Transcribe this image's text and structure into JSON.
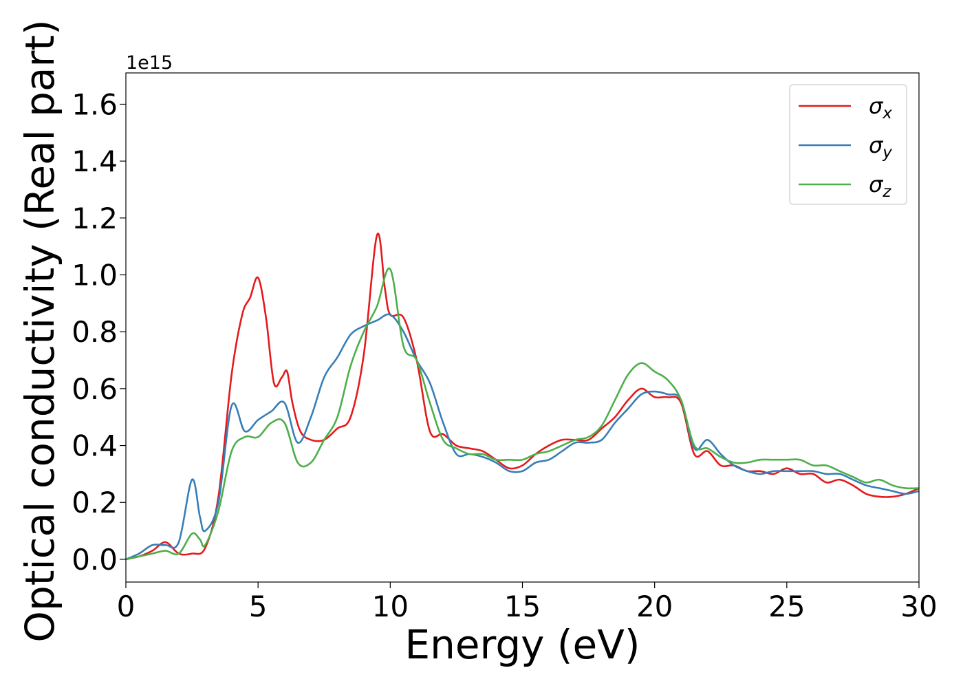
{
  "chart_data": {
    "type": "line",
    "title": "",
    "xlabel": "Energy (eV)",
    "ylabel": "Optical conductivity (Real part)",
    "y_offset_label": "1e15",
    "xlim": [
      0,
      30
    ],
    "ylim": [
      -0.08,
      1.71
    ],
    "x_ticks": [
      0,
      5,
      10,
      15,
      20,
      25,
      30
    ],
    "x_tick_labels": [
      "0",
      "5",
      "10",
      "15",
      "20",
      "25",
      "30"
    ],
    "y_ticks": [
      0.0,
      0.2,
      0.4,
      0.6,
      0.8,
      1.0,
      1.2,
      1.4,
      1.6
    ],
    "y_tick_labels": [
      "0.0",
      "0.2",
      "0.4",
      "0.6",
      "0.8",
      "1.0",
      "1.2",
      "1.4",
      "1.6"
    ],
    "grid": false,
    "legend_position": "top-right",
    "series": [
      {
        "name": "σx",
        "name_base": "σ",
        "name_sub": "x",
        "color": "#e41a1c",
        "x": [
          0,
          0.5,
          1,
          1.5,
          2,
          2.5,
          3,
          3.5,
          4,
          4.4,
          4.7,
          5,
          5.3,
          5.6,
          5.9,
          6.1,
          6.3,
          6.6,
          7,
          7.5,
          8,
          8.5,
          9,
          9.5,
          9.8,
          10,
          10.5,
          11,
          11.5,
          12,
          12.5,
          13,
          13.5,
          14,
          14.5,
          15,
          15.5,
          16,
          16.5,
          17,
          17.5,
          18,
          18.5,
          19,
          19.5,
          20,
          20.5,
          21,
          21.5,
          22,
          22.5,
          23,
          23.5,
          24,
          24.5,
          25,
          25.5,
          26,
          26.5,
          27,
          27.5,
          28,
          28.5,
          29,
          29.5,
          30
        ],
        "y": [
          0,
          0.01,
          0.03,
          0.06,
          0.02,
          0.02,
          0.04,
          0.22,
          0.65,
          0.86,
          0.92,
          0.99,
          0.85,
          0.62,
          0.64,
          0.66,
          0.55,
          0.45,
          0.42,
          0.42,
          0.46,
          0.5,
          0.72,
          1.14,
          0.95,
          0.86,
          0.85,
          0.7,
          0.45,
          0.44,
          0.4,
          0.39,
          0.38,
          0.35,
          0.32,
          0.33,
          0.37,
          0.4,
          0.42,
          0.42,
          0.42,
          0.46,
          0.5,
          0.56,
          0.6,
          0.57,
          0.57,
          0.55,
          0.37,
          0.38,
          0.33,
          0.33,
          0.31,
          0.31,
          0.3,
          0.32,
          0.3,
          0.3,
          0.27,
          0.28,
          0.26,
          0.23,
          0.22,
          0.22,
          0.23,
          0.25
        ]
      },
      {
        "name": "σy",
        "name_base": "σ",
        "name_sub": "y",
        "color": "#377eb8",
        "x": [
          0,
          0.5,
          1,
          1.5,
          2,
          2.5,
          2.8,
          3,
          3.5,
          4,
          4.5,
          5,
          5.5,
          6,
          6.5,
          7,
          7.5,
          8,
          8.5,
          9,
          9.5,
          10,
          10.5,
          11,
          11.5,
          12,
          12.5,
          13,
          13.5,
          14,
          14.5,
          15,
          15.5,
          16,
          16.5,
          17,
          17.5,
          18,
          18.5,
          19,
          19.5,
          20,
          20.5,
          21,
          21.5,
          22,
          22.5,
          23,
          23.5,
          24,
          24.5,
          25,
          25.5,
          26,
          26.5,
          27,
          27.5,
          28,
          28.5,
          29,
          29.5,
          30
        ],
        "y": [
          0,
          0.02,
          0.05,
          0.05,
          0.06,
          0.28,
          0.15,
          0.1,
          0.2,
          0.54,
          0.45,
          0.49,
          0.52,
          0.55,
          0.41,
          0.5,
          0.64,
          0.71,
          0.79,
          0.82,
          0.84,
          0.86,
          0.8,
          0.7,
          0.62,
          0.48,
          0.37,
          0.37,
          0.36,
          0.34,
          0.31,
          0.31,
          0.34,
          0.35,
          0.38,
          0.41,
          0.41,
          0.42,
          0.48,
          0.53,
          0.58,
          0.59,
          0.58,
          0.56,
          0.39,
          0.42,
          0.37,
          0.33,
          0.31,
          0.3,
          0.31,
          0.31,
          0.31,
          0.31,
          0.3,
          0.3,
          0.28,
          0.26,
          0.25,
          0.24,
          0.23,
          0.24
        ]
      },
      {
        "name": "σz",
        "name_base": "σ",
        "name_sub": "z",
        "color": "#4daf4a",
        "x": [
          0,
          0.5,
          1,
          1.5,
          2,
          2.5,
          2.8,
          3,
          3.5,
          4,
          4.5,
          5,
          5.5,
          6,
          6.5,
          7,
          7.5,
          8,
          8.5,
          9,
          9.5,
          10,
          10.5,
          11,
          11.5,
          12,
          12.5,
          13,
          13.5,
          14,
          14.5,
          15,
          15.5,
          16,
          16.5,
          17,
          17.5,
          18,
          18.5,
          19,
          19.5,
          20,
          20.5,
          21,
          21.5,
          22,
          22.5,
          23,
          23.5,
          24,
          24.5,
          25,
          25.5,
          26,
          26.5,
          27,
          27.5,
          28,
          28.5,
          29,
          29.5,
          30
        ],
        "y": [
          0,
          0.01,
          0.02,
          0.03,
          0.02,
          0.09,
          0.07,
          0.05,
          0.17,
          0.38,
          0.43,
          0.43,
          0.48,
          0.48,
          0.34,
          0.34,
          0.42,
          0.5,
          0.68,
          0.8,
          0.89,
          1.02,
          0.75,
          0.7,
          0.55,
          0.42,
          0.39,
          0.37,
          0.37,
          0.35,
          0.35,
          0.35,
          0.37,
          0.38,
          0.4,
          0.42,
          0.43,
          0.47,
          0.56,
          0.65,
          0.69,
          0.66,
          0.63,
          0.56,
          0.4,
          0.39,
          0.36,
          0.34,
          0.34,
          0.35,
          0.35,
          0.35,
          0.35,
          0.33,
          0.33,
          0.31,
          0.29,
          0.27,
          0.28,
          0.26,
          0.25,
          0.25
        ]
      }
    ]
  }
}
